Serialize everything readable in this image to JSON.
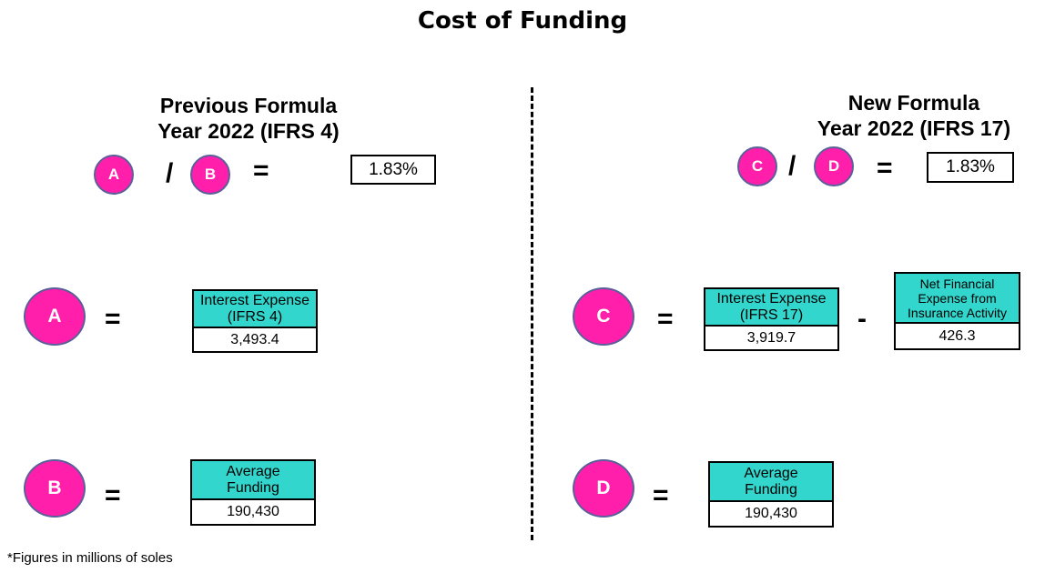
{
  "title": "Cost of Funding",
  "footnote": "*Figures in millions of soles",
  "left": {
    "heading_line1": "Previous Formula",
    "heading_line2": "Year 2022 (IFRS 4)",
    "formula": {
      "num": "A",
      "div": "/",
      "den": "B",
      "eq": "=",
      "result": "1.83%"
    },
    "row_a": {
      "letter": "A",
      "eq": "=",
      "box": {
        "label_line1": "Interest Expense",
        "label_line2": "(IFRS 4)",
        "value": "3,493.4"
      }
    },
    "row_b": {
      "letter": "B",
      "eq": "=",
      "box": {
        "label_line1": "Average",
        "label_line2": "Funding",
        "value": "190,430"
      }
    }
  },
  "right": {
    "heading_line1": "New Formula",
    "heading_line2": "Year 2022 (IFRS 17)",
    "formula": {
      "num": "C",
      "div": "/",
      "den": "D",
      "eq": "=",
      "result": "1.83%"
    },
    "row_c": {
      "letter": "C",
      "eq": "=",
      "minus": "-",
      "box1": {
        "label_line1": "Interest Expense",
        "label_line2": "(IFRS 17)",
        "value": "3,919.7"
      },
      "box2": {
        "label_line1": "Net Financial",
        "label_line2": "Expense from",
        "label_line3": "Insurance Activity",
        "value": "426.3"
      }
    },
    "row_d": {
      "letter": "D",
      "eq": "=",
      "box": {
        "label_line1": "Average",
        "label_line2": "Funding",
        "value": "190,430"
      }
    }
  },
  "colors": {
    "circle_fill": "#ff1fab",
    "circle_border": "#5a5f9b",
    "box_fill": "#33d6cc"
  }
}
